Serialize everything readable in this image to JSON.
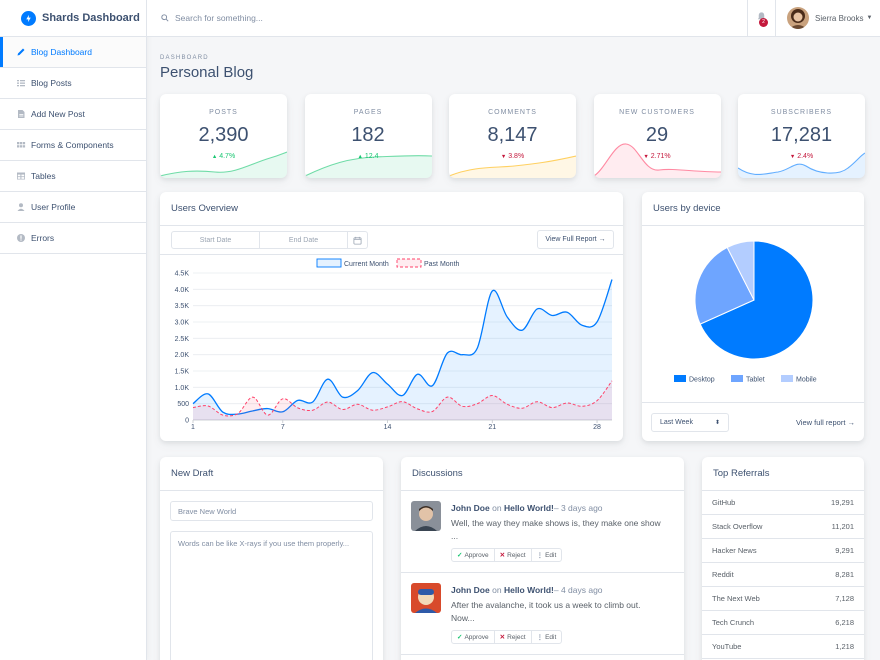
{
  "brand": {
    "name": "Shards Dashboard"
  },
  "sidebar": {
    "items": [
      {
        "label": "Blog Dashboard",
        "icon": "pencil-icon",
        "active": true
      },
      {
        "label": "Blog Posts",
        "icon": "list-icon"
      },
      {
        "label": "Add New Post",
        "icon": "file-icon"
      },
      {
        "label": "Forms & Components",
        "icon": "components-icon"
      },
      {
        "label": "Tables",
        "icon": "table-icon"
      },
      {
        "label": "User Profile",
        "icon": "person-icon"
      },
      {
        "label": "Errors",
        "icon": "error-icon"
      }
    ]
  },
  "topbar": {
    "search_placeholder": "Search for something...",
    "notifications_count": "2",
    "user_name": "Sierra Brooks"
  },
  "header": {
    "subtitle": "Dashboard",
    "title": "Personal Blog"
  },
  "stats": [
    {
      "label": "Posts",
      "value": "2,390",
      "change": "4.7%",
      "direction": "up",
      "color": "#17c671"
    },
    {
      "label": "Pages",
      "value": "182",
      "change": "12.4",
      "direction": "up",
      "color": "#17c671"
    },
    {
      "label": "Comments",
      "value": "8,147",
      "change": "3.8%",
      "direction": "down",
      "color": "#ffb400"
    },
    {
      "label": "New Customers",
      "value": "29",
      "change": "2.71%",
      "direction": "down",
      "color": "#ff4169"
    },
    {
      "label": "Subscribers",
      "value": "17,281",
      "change": "2.4%",
      "direction": "down",
      "color": "#007bff"
    }
  ],
  "users_overview": {
    "title": "Users Overview",
    "start_placeholder": "Start Date",
    "end_placeholder": "End Date",
    "report_button": "View Full Report →"
  },
  "users_by_device": {
    "title": "Users by device",
    "period": "Last Week",
    "report_link": "View full report →"
  },
  "new_draft": {
    "title": "New Draft",
    "title_placeholder": "Brave New World",
    "body_placeholder": "Words can be like X-rays if you use them properly..."
  },
  "discussions": {
    "title": "Discussions",
    "items": [
      {
        "author": "John Doe",
        "on": "on",
        "post": "Hello World!",
        "time": "– 3 days ago",
        "text": "Well, the way they make shows is, they make one show ..."
      },
      {
        "author": "John Doe",
        "on": "on",
        "post": "Hello World!",
        "time": "– 4 days ago",
        "text": "After the avalanche, it took us a week to climb out. Now..."
      }
    ],
    "approve": "Approve",
    "reject": "Reject",
    "edit": "Edit"
  },
  "referrals": {
    "title": "Top Referrals",
    "rows": [
      {
        "name": "GitHub",
        "value": "19,291"
      },
      {
        "name": "Stack Overflow",
        "value": "11,201"
      },
      {
        "name": "Hacker News",
        "value": "9,291"
      },
      {
        "name": "Reddit",
        "value": "8,281"
      },
      {
        "name": "The Next Web",
        "value": "7,128"
      },
      {
        "name": "Tech Crunch",
        "value": "6,218"
      },
      {
        "name": "YouTube",
        "value": "1,218"
      }
    ]
  },
  "chart_data": [
    {
      "type": "area",
      "legend": [
        "Current Month",
        "Past Month"
      ],
      "legend_position": "top",
      "y_ticks": [
        "0",
        "500",
        "1.0K",
        "1.5K",
        "2.0K",
        "2.5K",
        "3.0K",
        "3.5K",
        "4.0K",
        "4.5K"
      ],
      "x_ticks": [
        "1",
        "7",
        "14",
        "21",
        "28"
      ],
      "ylim": [
        0,
        4500
      ],
      "x": [
        1,
        2,
        3,
        4,
        5,
        6,
        7,
        8,
        9,
        10,
        11,
        12,
        13,
        14,
        15,
        16,
        17,
        18,
        19,
        20,
        21,
        22,
        23,
        24,
        25,
        26,
        27,
        28,
        29
      ],
      "series": [
        {
          "name": "Current Month",
          "color": "#007bff",
          "values": [
            500,
            800,
            240,
            180,
            280,
            350,
            250,
            600,
            550,
            1250,
            700,
            900,
            1450,
            1100,
            750,
            1400,
            1050,
            2050,
            2000,
            2200,
            3950,
            3150,
            2750,
            3400,
            3200,
            3300,
            2900,
            3000,
            4300
          ]
        },
        {
          "name": "Past Month",
          "color": "#ff4169",
          "values": [
            380,
            430,
            150,
            200,
            700,
            150,
            650,
            370,
            300,
            550,
            320,
            480,
            300,
            400,
            560,
            340,
            260,
            700,
            420,
            500,
            750,
            480,
            360,
            560,
            380,
            520,
            420,
            590,
            1200
          ]
        }
      ]
    },
    {
      "type": "pie",
      "legend_position": "bottom",
      "categories": [
        "Desktop",
        "Tablet",
        "Mobile"
      ],
      "values": [
        68.3,
        24.2,
        7.5
      ],
      "colors": [
        "#007bff",
        "#6ea5ff",
        "#b3cdff"
      ]
    }
  ]
}
